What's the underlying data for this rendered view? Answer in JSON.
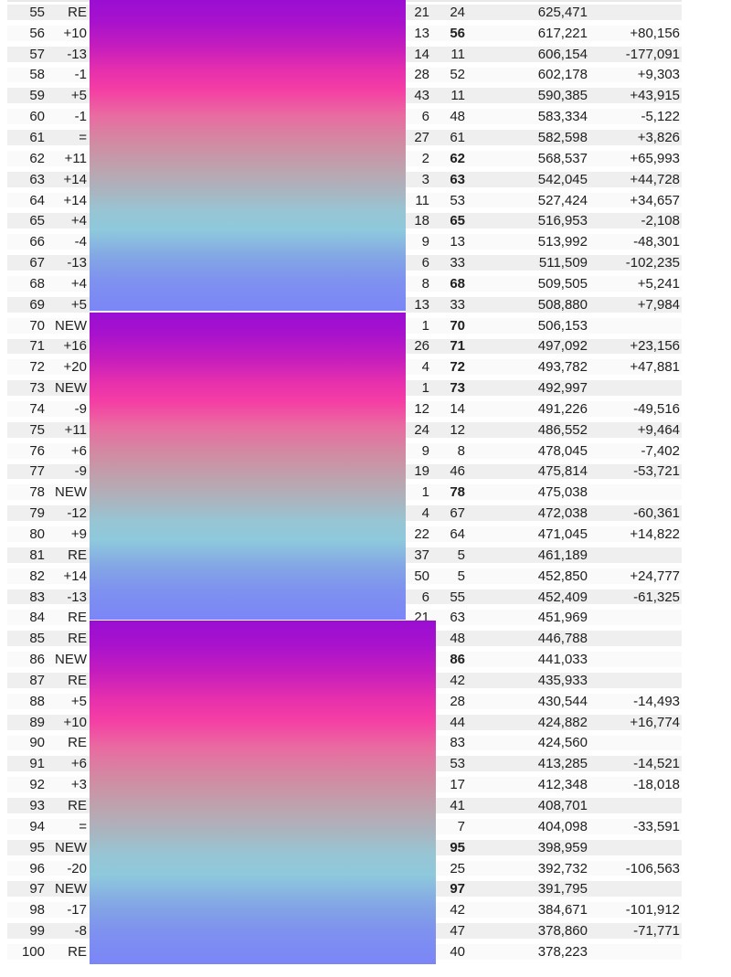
{
  "colors": {
    "page_bg": "#ffffff",
    "text": "#202020",
    "odd_row_bg": "#efefef",
    "even_row_bg": "#fafafa",
    "redaction_gradient_stops": [
      "#9a0ed2 0%",
      "#a812cd 7%",
      "#c51dbd 15%",
      "#e730ac 23%",
      "#f53ea4 29%",
      "#e96ba1 37%",
      "#d18ba2 46%",
      "#bba5af 55%",
      "#a8b6c1 62%",
      "#97c5d4 68%",
      "#8ec9dc 74%",
      "#83a5e5 83%",
      "#7e90f0 91%",
      "#7b86f6 100%"
    ]
  },
  "table": {
    "columns": [
      "rank",
      "change",
      "weeks",
      "peak",
      "points",
      "points_change"
    ],
    "rows": [
      {
        "rank": 55,
        "change": "RE",
        "weeks": "21",
        "peak": "24",
        "peak_bold": false,
        "points": "625,471",
        "points_change": ""
      },
      {
        "rank": 56,
        "change": "+10",
        "weeks": "13",
        "peak": "56",
        "peak_bold": true,
        "points": "617,221",
        "points_change": "+80,156"
      },
      {
        "rank": 57,
        "change": "-13",
        "weeks": "14",
        "peak": "11",
        "peak_bold": false,
        "points": "606,154",
        "points_change": "-177,091"
      },
      {
        "rank": 58,
        "change": "-1",
        "weeks": "28",
        "peak": "52",
        "peak_bold": false,
        "points": "602,178",
        "points_change": "+9,303"
      },
      {
        "rank": 59,
        "change": "+5",
        "weeks": "43",
        "peak": "11",
        "peak_bold": false,
        "points": "590,385",
        "points_change": "+43,915"
      },
      {
        "rank": 60,
        "change": "-1",
        "weeks": "6",
        "peak": "48",
        "peak_bold": false,
        "points": "583,334",
        "points_change": "-5,122"
      },
      {
        "rank": 61,
        "change": "=",
        "weeks": "27",
        "peak": "61",
        "peak_bold": false,
        "points": "582,598",
        "points_change": "+3,826"
      },
      {
        "rank": 62,
        "change": "+11",
        "weeks": "2",
        "peak": "62",
        "peak_bold": true,
        "points": "568,537",
        "points_change": "+65,993"
      },
      {
        "rank": 63,
        "change": "+14",
        "weeks": "3",
        "peak": "63",
        "peak_bold": true,
        "points": "542,045",
        "points_change": "+44,728"
      },
      {
        "rank": 64,
        "change": "+14",
        "weeks": "11",
        "peak": "53",
        "peak_bold": false,
        "points": "527,424",
        "points_change": "+34,657"
      },
      {
        "rank": 65,
        "change": "+4",
        "weeks": "18",
        "peak": "65",
        "peak_bold": true,
        "points": "516,953",
        "points_change": "-2,108"
      },
      {
        "rank": 66,
        "change": "-4",
        "weeks": "9",
        "peak": "13",
        "peak_bold": false,
        "points": "513,992",
        "points_change": "-48,301"
      },
      {
        "rank": 67,
        "change": "-13",
        "weeks": "6",
        "peak": "33",
        "peak_bold": false,
        "points": "511,509",
        "points_change": "-102,235"
      },
      {
        "rank": 68,
        "change": "+4",
        "weeks": "8",
        "peak": "68",
        "peak_bold": true,
        "points": "509,505",
        "points_change": "+5,241"
      },
      {
        "rank": 69,
        "change": "+5",
        "weeks": "13",
        "peak": "33",
        "peak_bold": false,
        "points": "508,880",
        "points_change": "+7,984"
      },
      {
        "rank": 70,
        "change": "NEW",
        "weeks": "1",
        "peak": "70",
        "peak_bold": true,
        "points": "506,153",
        "points_change": ""
      },
      {
        "rank": 71,
        "change": "+16",
        "weeks": "26",
        "peak": "71",
        "peak_bold": true,
        "points": "497,092",
        "points_change": "+23,156"
      },
      {
        "rank": 72,
        "change": "+20",
        "weeks": "4",
        "peak": "72",
        "peak_bold": true,
        "points": "493,782",
        "points_change": "+47,881"
      },
      {
        "rank": 73,
        "change": "NEW",
        "weeks": "1",
        "peak": "73",
        "peak_bold": true,
        "points": "492,997",
        "points_change": ""
      },
      {
        "rank": 74,
        "change": "-9",
        "weeks": "12",
        "peak": "14",
        "peak_bold": false,
        "points": "491,226",
        "points_change": "-49,516"
      },
      {
        "rank": 75,
        "change": "+11",
        "weeks": "24",
        "peak": "12",
        "peak_bold": false,
        "points": "486,552",
        "points_change": "+9,464"
      },
      {
        "rank": 76,
        "change": "+6",
        "weeks": "9",
        "peak": "8",
        "peak_bold": false,
        "points": "478,045",
        "points_change": "-7,402"
      },
      {
        "rank": 77,
        "change": "-9",
        "weeks": "19",
        "peak": "46",
        "peak_bold": false,
        "points": "475,814",
        "points_change": "-53,721"
      },
      {
        "rank": 78,
        "change": "NEW",
        "weeks": "1",
        "peak": "78",
        "peak_bold": true,
        "points": "475,038",
        "points_change": ""
      },
      {
        "rank": 79,
        "change": "-12",
        "weeks": "4",
        "peak": "67",
        "peak_bold": false,
        "points": "472,038",
        "points_change": "-60,361"
      },
      {
        "rank": 80,
        "change": "+9",
        "weeks": "22",
        "peak": "64",
        "peak_bold": false,
        "points": "471,045",
        "points_change": "+14,822"
      },
      {
        "rank": 81,
        "change": "RE",
        "weeks": "37",
        "peak": "5",
        "peak_bold": false,
        "points": "461,189",
        "points_change": ""
      },
      {
        "rank": 82,
        "change": "+14",
        "weeks": "50",
        "peak": "5",
        "peak_bold": false,
        "points": "452,850",
        "points_change": "+24,777"
      },
      {
        "rank": 83,
        "change": "-13",
        "weeks": "6",
        "peak": "55",
        "peak_bold": false,
        "points": "452,409",
        "points_change": "-61,325"
      },
      {
        "rank": 84,
        "change": "RE",
        "weeks": "21",
        "peak": "63",
        "peak_bold": false,
        "points": "451,969",
        "points_change": ""
      },
      {
        "rank": 85,
        "change": "RE",
        "weeks": "",
        "peak": "48",
        "peak_bold": false,
        "points": "446,788",
        "points_change": ""
      },
      {
        "rank": 86,
        "change": "NEW",
        "weeks": "",
        "peak": "86",
        "peak_bold": true,
        "points": "441,033",
        "points_change": ""
      },
      {
        "rank": 87,
        "change": "RE",
        "weeks": "",
        "peak": "42",
        "peak_bold": false,
        "points": "435,933",
        "points_change": ""
      },
      {
        "rank": 88,
        "change": "+5",
        "weeks": "",
        "peak": "28",
        "peak_bold": false,
        "points": "430,544",
        "points_change": "-14,493"
      },
      {
        "rank": 89,
        "change": "+10",
        "weeks": "",
        "peak": "44",
        "peak_bold": false,
        "points": "424,882",
        "points_change": "+16,774"
      },
      {
        "rank": 90,
        "change": "RE",
        "weeks": "",
        "peak": "83",
        "peak_bold": false,
        "points": "424,560",
        "points_change": ""
      },
      {
        "rank": 91,
        "change": "+6",
        "weeks": "",
        "peak": "53",
        "peak_bold": false,
        "points": "413,285",
        "points_change": "-14,521"
      },
      {
        "rank": 92,
        "change": "+3",
        "weeks": "",
        "peak": "17",
        "peak_bold": false,
        "points": "412,348",
        "points_change": "-18,018"
      },
      {
        "rank": 93,
        "change": "RE",
        "weeks": "",
        "peak": "41",
        "peak_bold": false,
        "points": "408,701",
        "points_change": ""
      },
      {
        "rank": 94,
        "change": "=",
        "weeks": "",
        "peak": "7",
        "peak_bold": false,
        "points": "404,098",
        "points_change": "-33,591"
      },
      {
        "rank": 95,
        "change": "NEW",
        "weeks": "",
        "peak": "95",
        "peak_bold": true,
        "points": "398,959",
        "points_change": ""
      },
      {
        "rank": 96,
        "change": "-20",
        "weeks": "",
        "peak": "25",
        "peak_bold": false,
        "points": "392,732",
        "points_change": "-106,563"
      },
      {
        "rank": 97,
        "change": "NEW",
        "weeks": "",
        "peak": "97",
        "peak_bold": true,
        "points": "391,795",
        "points_change": ""
      },
      {
        "rank": 98,
        "change": "-17",
        "weeks": "",
        "peak": "42",
        "peak_bold": false,
        "points": "384,671",
        "points_change": "-101,912"
      },
      {
        "rank": 99,
        "change": "-8",
        "weeks": "",
        "peak": "47",
        "peak_bold": false,
        "points": "378,860",
        "points_change": "-71,771"
      },
      {
        "rank": 100,
        "change": "RE",
        "weeks": "",
        "peak": "40",
        "peak_bold": false,
        "points": "378,223",
        "points_change": ""
      }
    ]
  },
  "redactions": [
    {
      "id": "block-1",
      "covers_ranks": "55-69"
    },
    {
      "id": "block-2",
      "covers_ranks": "70-84"
    },
    {
      "id": "block-3",
      "covers_ranks": "85-100"
    }
  ]
}
